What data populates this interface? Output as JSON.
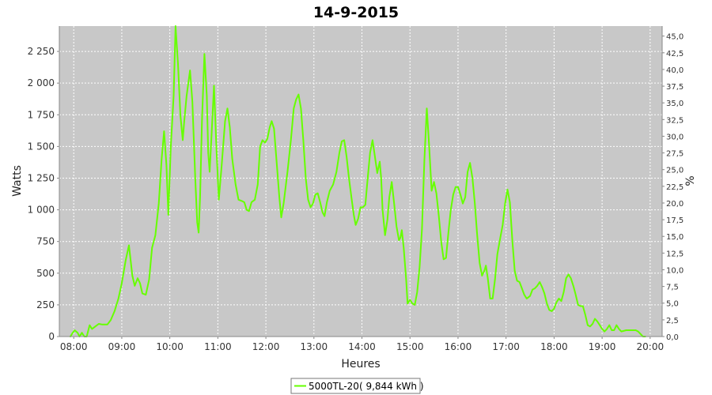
{
  "chart_data": {
    "type": "line",
    "title": "14-9-2015",
    "xlabel": "Heures",
    "ylabel": "Watts",
    "y2label": "%",
    "xlim": [
      7.7,
      20.25
    ],
    "ylim": [
      0,
      2450
    ],
    "y2lim": [
      0,
      46.5
    ],
    "grid": true,
    "legend_position": "bottom",
    "colors": {
      "series": "#66ff00",
      "plot_bg": "#c8c8c8",
      "grid": "#ffffff"
    },
    "x_ticks": [
      {
        "v": 8,
        "label": "08:00"
      },
      {
        "v": 9,
        "label": "09:00"
      },
      {
        "v": 10,
        "label": "10:00"
      },
      {
        "v": 11,
        "label": "11:00"
      },
      {
        "v": 12,
        "label": "12:00"
      },
      {
        "v": 13,
        "label": "13:00"
      },
      {
        "v": 14,
        "label": "14:00"
      },
      {
        "v": 15,
        "label": "15:00"
      },
      {
        "v": 16,
        "label": "16:00"
      },
      {
        "v": 17,
        "label": "17:00"
      },
      {
        "v": 18,
        "label": "18:00"
      },
      {
        "v": 19,
        "label": "19:00"
      },
      {
        "v": 20,
        "label": "20:00"
      }
    ],
    "y_ticks": [
      {
        "v": 0,
        "label": "0"
      },
      {
        "v": 250,
        "label": "250"
      },
      {
        "v": 500,
        "label": "500"
      },
      {
        "v": 750,
        "label": "750"
      },
      {
        "v": 1000,
        "label": "1 000"
      },
      {
        "v": 1250,
        "label": "1 250"
      },
      {
        "v": 1500,
        "label": "1 500"
      },
      {
        "v": 1750,
        "label": "1 750"
      },
      {
        "v": 2000,
        "label": "2 000"
      },
      {
        "v": 2250,
        "label": "2 250"
      }
    ],
    "y2_ticks": [
      {
        "v": 0,
        "label": "0,0"
      },
      {
        "v": 2.5,
        "label": "2,5"
      },
      {
        "v": 5,
        "label": "5,0"
      },
      {
        "v": 7.5,
        "label": "7,5"
      },
      {
        "v": 10,
        "label": "10,0"
      },
      {
        "v": 12.5,
        "label": "12,5"
      },
      {
        "v": 15,
        "label": "15,0"
      },
      {
        "v": 17.5,
        "label": "17,5"
      },
      {
        "v": 20,
        "label": "20,0"
      },
      {
        "v": 22.5,
        "label": "22,5"
      },
      {
        "v": 25,
        "label": "25,0"
      },
      {
        "v": 27.5,
        "label": "27,5"
      },
      {
        "v": 30,
        "label": "30,0"
      },
      {
        "v": 32.5,
        "label": "32,5"
      },
      {
        "v": 35,
        "label": "35,0"
      },
      {
        "v": 37.5,
        "label": "37,5"
      },
      {
        "v": 40,
        "label": "40,0"
      },
      {
        "v": 42.5,
        "label": "42,5"
      },
      {
        "v": 45,
        "label": "45,0"
      }
    ],
    "series": [
      {
        "name": "5000TL-20( 9,844 kWh )",
        "points": [
          [
            7.93,
            0
          ],
          [
            7.97,
            25
          ],
          [
            8.02,
            50
          ],
          [
            8.08,
            30
          ],
          [
            8.12,
            0
          ],
          [
            8.17,
            30
          ],
          [
            8.22,
            0
          ],
          [
            8.27,
            0
          ],
          [
            8.33,
            90
          ],
          [
            8.38,
            60
          ],
          [
            8.45,
            80
          ],
          [
            8.52,
            100
          ],
          [
            8.6,
            95
          ],
          [
            8.7,
            95
          ],
          [
            8.77,
            130
          ],
          [
            8.85,
            200
          ],
          [
            8.93,
            300
          ],
          [
            9.0,
            420
          ],
          [
            9.08,
            600
          ],
          [
            9.15,
            720
          ],
          [
            9.22,
            480
          ],
          [
            9.27,
            400
          ],
          [
            9.33,
            460
          ],
          [
            9.38,
            420
          ],
          [
            9.43,
            340
          ],
          [
            9.5,
            330
          ],
          [
            9.57,
            450
          ],
          [
            9.63,
            700
          ],
          [
            9.7,
            800
          ],
          [
            9.77,
            1050
          ],
          [
            9.83,
            1400
          ],
          [
            9.88,
            1620
          ],
          [
            9.93,
            1350
          ],
          [
            9.97,
            960
          ],
          [
            10.02,
            1500
          ],
          [
            10.08,
            1900
          ],
          [
            10.12,
            2450
          ],
          [
            10.17,
            2150
          ],
          [
            10.22,
            1750
          ],
          [
            10.27,
            1550
          ],
          [
            10.3,
            1700
          ],
          [
            10.35,
            1900
          ],
          [
            10.42,
            2100
          ],
          [
            10.47,
            1850
          ],
          [
            10.5,
            1550
          ],
          [
            10.53,
            1250
          ],
          [
            10.57,
            900
          ],
          [
            10.6,
            820
          ],
          [
            10.63,
            1100
          ],
          [
            10.67,
            1700
          ],
          [
            10.72,
            2230
          ],
          [
            10.77,
            1900
          ],
          [
            10.8,
            1450
          ],
          [
            10.83,
            1300
          ],
          [
            10.87,
            1600
          ],
          [
            10.92,
            1980
          ],
          [
            10.97,
            1500
          ],
          [
            11.02,
            1080
          ],
          [
            11.08,
            1350
          ],
          [
            11.15,
            1700
          ],
          [
            11.2,
            1800
          ],
          [
            11.25,
            1650
          ],
          [
            11.3,
            1400
          ],
          [
            11.37,
            1200
          ],
          [
            11.43,
            1080
          ],
          [
            11.5,
            1070
          ],
          [
            11.55,
            1060
          ],
          [
            11.6,
            1000
          ],
          [
            11.65,
            990
          ],
          [
            11.7,
            1060
          ],
          [
            11.77,
            1080
          ],
          [
            11.83,
            1200
          ],
          [
            11.88,
            1500
          ],
          [
            11.93,
            1550
          ],
          [
            11.98,
            1530
          ],
          [
            12.03,
            1560
          ],
          [
            12.08,
            1650
          ],
          [
            12.12,
            1700
          ],
          [
            12.17,
            1640
          ],
          [
            12.22,
            1400
          ],
          [
            12.28,
            1100
          ],
          [
            12.32,
            940
          ],
          [
            12.37,
            1050
          ],
          [
            12.45,
            1300
          ],
          [
            12.52,
            1550
          ],
          [
            12.58,
            1800
          ],
          [
            12.63,
            1870
          ],
          [
            12.68,
            1910
          ],
          [
            12.73,
            1800
          ],
          [
            12.78,
            1550
          ],
          [
            12.83,
            1250
          ],
          [
            12.88,
            1080
          ],
          [
            12.93,
            1020
          ],
          [
            12.98,
            1050
          ],
          [
            13.03,
            1120
          ],
          [
            13.08,
            1130
          ],
          [
            13.13,
            1060
          ],
          [
            13.18,
            980
          ],
          [
            13.22,
            950
          ],
          [
            13.27,
            1060
          ],
          [
            13.33,
            1150
          ],
          [
            13.4,
            1200
          ],
          [
            13.47,
            1300
          ],
          [
            13.53,
            1450
          ],
          [
            13.58,
            1540
          ],
          [
            13.63,
            1550
          ],
          [
            13.68,
            1420
          ],
          [
            13.73,
            1250
          ],
          [
            13.78,
            1100
          ],
          [
            13.83,
            960
          ],
          [
            13.87,
            880
          ],
          [
            13.92,
            930
          ],
          [
            13.97,
            1020
          ],
          [
            14.02,
            1020
          ],
          [
            14.07,
            1040
          ],
          [
            14.12,
            1250
          ],
          [
            14.17,
            1450
          ],
          [
            14.22,
            1550
          ],
          [
            14.27,
            1420
          ],
          [
            14.32,
            1290
          ],
          [
            14.37,
            1380
          ],
          [
            14.4,
            1250
          ],
          [
            14.43,
            1000
          ],
          [
            14.48,
            800
          ],
          [
            14.53,
            920
          ],
          [
            14.57,
            1100
          ],
          [
            14.62,
            1220
          ],
          [
            14.67,
            1050
          ],
          [
            14.72,
            870
          ],
          [
            14.77,
            760
          ],
          [
            14.8,
            780
          ],
          [
            14.83,
            840
          ],
          [
            14.87,
            700
          ],
          [
            14.92,
            450
          ],
          [
            14.95,
            260
          ],
          [
            15.0,
            290
          ],
          [
            15.05,
            260
          ],
          [
            15.1,
            250
          ],
          [
            15.15,
            350
          ],
          [
            15.2,
            550
          ],
          [
            15.25,
            850
          ],
          [
            15.3,
            1400
          ],
          [
            15.35,
            1800
          ],
          [
            15.4,
            1500
          ],
          [
            15.45,
            1150
          ],
          [
            15.5,
            1220
          ],
          [
            15.55,
            1130
          ],
          [
            15.6,
            950
          ],
          [
            15.65,
            750
          ],
          [
            15.7,
            610
          ],
          [
            15.75,
            620
          ],
          [
            15.8,
            820
          ],
          [
            15.85,
            1000
          ],
          [
            15.9,
            1120
          ],
          [
            15.95,
            1180
          ],
          [
            16.0,
            1180
          ],
          [
            16.05,
            1120
          ],
          [
            16.1,
            1050
          ],
          [
            16.15,
            1100
          ],
          [
            16.2,
            1300
          ],
          [
            16.25,
            1370
          ],
          [
            16.3,
            1250
          ],
          [
            16.35,
            1050
          ],
          [
            16.4,
            800
          ],
          [
            16.45,
            580
          ],
          [
            16.5,
            480
          ],
          [
            16.55,
            520
          ],
          [
            16.58,
            560
          ],
          [
            16.62,
            460
          ],
          [
            16.67,
            300
          ],
          [
            16.72,
            300
          ],
          [
            16.77,
            450
          ],
          [
            16.82,
            650
          ],
          [
            16.88,
            780
          ],
          [
            16.93,
            880
          ],
          [
            16.98,
            1050
          ],
          [
            17.03,
            1160
          ],
          [
            17.08,
            1060
          ],
          [
            17.13,
            760
          ],
          [
            17.18,
            520
          ],
          [
            17.23,
            440
          ],
          [
            17.28,
            430
          ],
          [
            17.33,
            380
          ],
          [
            17.38,
            330
          ],
          [
            17.43,
            300
          ],
          [
            17.5,
            320
          ],
          [
            17.55,
            370
          ],
          [
            17.6,
            380
          ],
          [
            17.65,
            400
          ],
          [
            17.7,
            430
          ],
          [
            17.75,
            390
          ],
          [
            17.8,
            340
          ],
          [
            17.85,
            260
          ],
          [
            17.9,
            210
          ],
          [
            17.95,
            200
          ],
          [
            18.0,
            220
          ],
          [
            18.05,
            270
          ],
          [
            18.1,
            300
          ],
          [
            18.15,
            280
          ],
          [
            18.2,
            350
          ],
          [
            18.25,
            460
          ],
          [
            18.3,
            490
          ],
          [
            18.35,
            460
          ],
          [
            18.4,
            400
          ],
          [
            18.45,
            330
          ],
          [
            18.5,
            250
          ],
          [
            18.55,
            240
          ],
          [
            18.6,
            240
          ],
          [
            18.65,
            170
          ],
          [
            18.7,
            90
          ],
          [
            18.75,
            80
          ],
          [
            18.8,
            100
          ],
          [
            18.85,
            140
          ],
          [
            18.9,
            120
          ],
          [
            18.95,
            90
          ],
          [
            19.0,
            60
          ],
          [
            19.05,
            40
          ],
          [
            19.1,
            60
          ],
          [
            19.15,
            90
          ],
          [
            19.2,
            50
          ],
          [
            19.25,
            50
          ],
          [
            19.3,
            90
          ],
          [
            19.35,
            60
          ],
          [
            19.4,
            40
          ],
          [
            19.5,
            50
          ],
          [
            19.6,
            50
          ],
          [
            19.7,
            50
          ],
          [
            19.75,
            40
          ],
          [
            19.8,
            20
          ],
          [
            19.85,
            0
          ],
          [
            19.9,
            0
          ]
        ]
      }
    ]
  }
}
